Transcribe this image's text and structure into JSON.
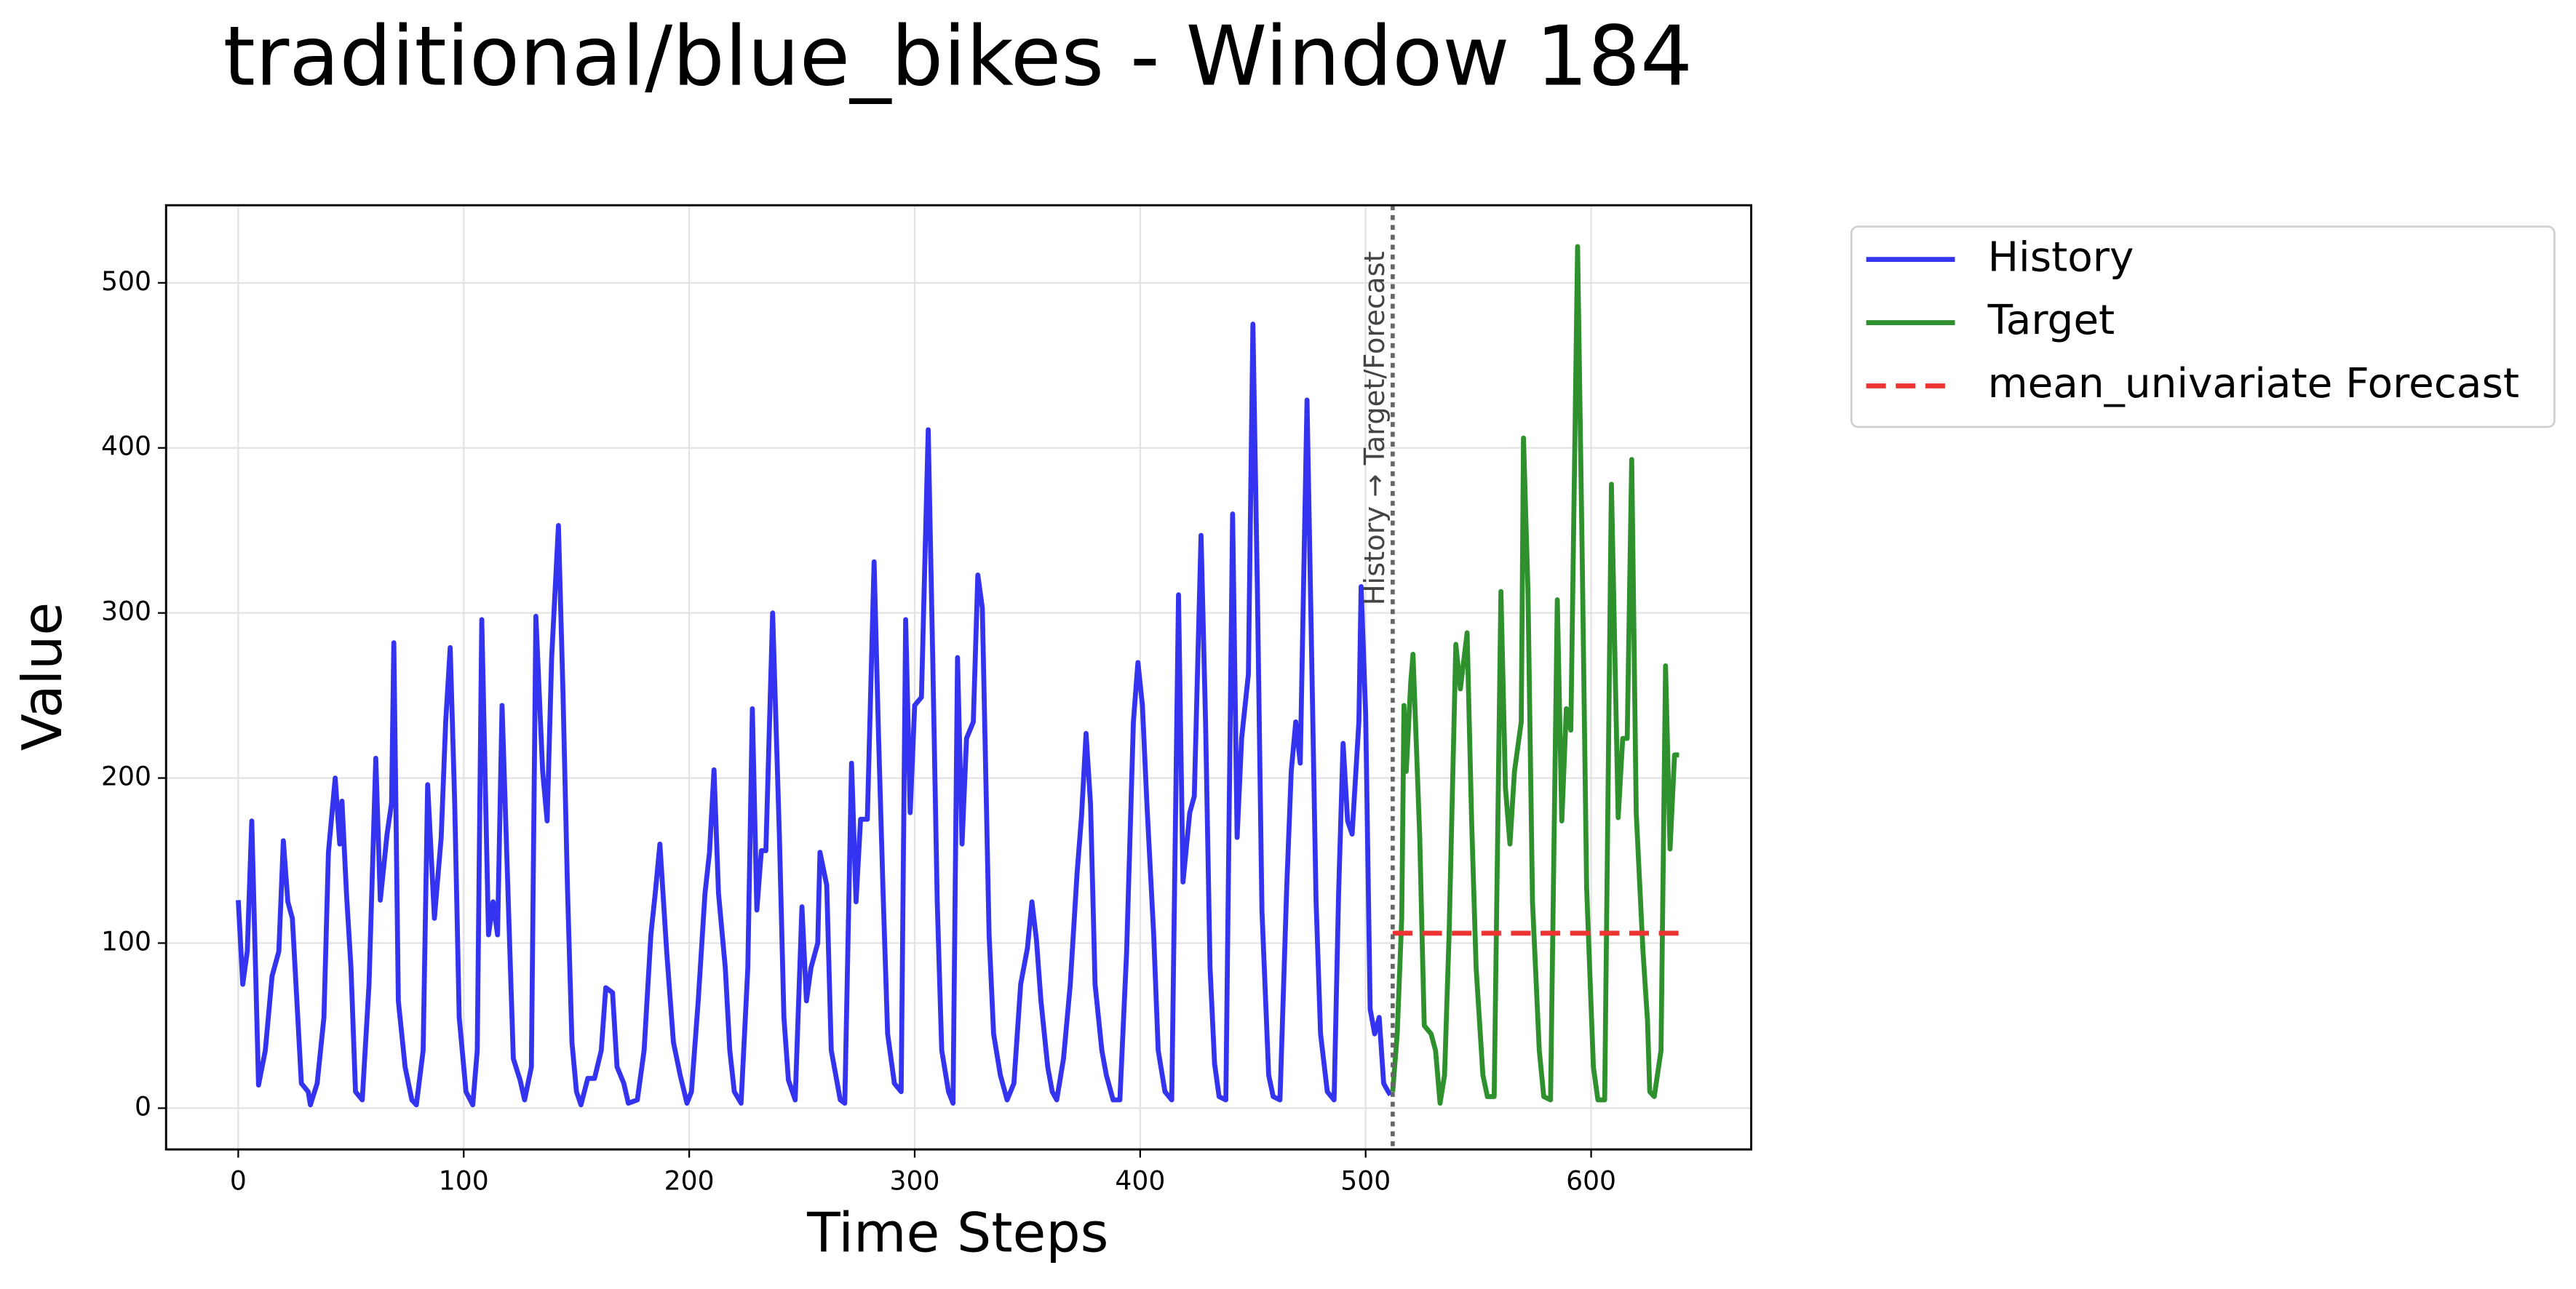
{
  "chart_data": {
    "type": "line",
    "title": "traditional/blue_bikes - Window 184",
    "x_label": "Time Steps",
    "y_label": "Value",
    "xlim": [
      -32,
      671
    ],
    "ylim": [
      -25,
      547
    ],
    "xticks": [
      0,
      100,
      200,
      300,
      400,
      500,
      600
    ],
    "yticks": [
      0,
      100,
      200,
      300,
      400,
      500
    ],
    "grid": true,
    "legend": "outside upper right",
    "split_x": 512,
    "split_label": "History → Target/Forecast",
    "series": [
      {
        "name": "History",
        "color": "#3333f0",
        "dash": false,
        "x": [
          0,
          2,
          4,
          6,
          9,
          12,
          15,
          18,
          20,
          22,
          24,
          26,
          28,
          31,
          32,
          35,
          38,
          40,
          43,
          45,
          46,
          48,
          50,
          52,
          55,
          58,
          61,
          63,
          66,
          68,
          69,
          71,
          74,
          77,
          79,
          82,
          84,
          87,
          90,
          92,
          94,
          96,
          98,
          101,
          104,
          106,
          108,
          111,
          113,
          115,
          117,
          120,
          122,
          125,
          127,
          130,
          132,
          135,
          137,
          139,
          142,
          144,
          146,
          148,
          150,
          152,
          155,
          158,
          161,
          163,
          166,
          168,
          171,
          173,
          177,
          180,
          183,
          185,
          187,
          190,
          193,
          196,
          199,
          201,
          204,
          207,
          209,
          211,
          213,
          216,
          218,
          220,
          223,
          226,
          228,
          230,
          232,
          234,
          237,
          240,
          242,
          244,
          247,
          250,
          252,
          254,
          257,
          258,
          261,
          263,
          265,
          267,
          269,
          272,
          274,
          276,
          279,
          282,
          284,
          286,
          288,
          291,
          294,
          296,
          298,
          300,
          303,
          306,
          308,
          310,
          312,
          315,
          317,
          319,
          321,
          323,
          326,
          328,
          330,
          333,
          335,
          338,
          341,
          344,
          347,
          350,
          352,
          354,
          356,
          359,
          361,
          363,
          366,
          369,
          372,
          374,
          376,
          378,
          380,
          383,
          385,
          388,
          391,
          394,
          397,
          399,
          401,
          403,
          406,
          408,
          411,
          414,
          417,
          419,
          422,
          424,
          427,
          429,
          431,
          433,
          435,
          438,
          441,
          443,
          445,
          448,
          450,
          452,
          454,
          457,
          459,
          462,
          465,
          467,
          469,
          471,
          474,
          476,
          478,
          480,
          483,
          486,
          488,
          490,
          492,
          494,
          497,
          498,
          500,
          502,
          504,
          506,
          508,
          510,
          511
        ],
        "values": [
          126,
          75,
          95,
          174,
          14,
          35,
          80,
          95,
          162,
          125,
          115,
          65,
          15,
          10,
          2,
          15,
          55,
          155,
          200,
          160,
          186,
          130,
          85,
          10,
          5,
          75,
          212,
          126,
          166,
          185,
          282,
          65,
          25,
          5,
          2,
          35,
          196,
          115,
          164,
          234,
          279,
          185,
          55,
          10,
          2,
          35,
          296,
          105,
          125,
          105,
          244,
          115,
          30,
          17,
          5,
          25,
          298,
          204,
          174,
          273,
          353,
          253,
          134,
          40,
          10,
          2,
          18,
          18,
          35,
          73,
          70,
          25,
          15,
          3,
          5,
          35,
          105,
          131,
          160,
          95,
          40,
          20,
          3,
          10,
          65,
          130,
          155,
          205,
          130,
          85,
          35,
          10,
          3,
          85,
          242,
          120,
          156,
          156,
          300,
          165,
          55,
          17,
          5,
          122,
          65,
          85,
          100,
          155,
          135,
          35,
          20,
          5,
          3,
          209,
          125,
          175,
          175,
          331,
          224,
          130,
          45,
          15,
          10,
          296,
          179,
          244,
          249,
          411,
          273,
          125,
          35,
          10,
          3,
          273,
          160,
          224,
          234,
          323,
          303,
          105,
          45,
          20,
          5,
          15,
          75,
          97,
          125,
          102,
          65,
          25,
          10,
          5,
          30,
          75,
          142,
          177,
          227,
          184,
          75,
          35,
          20,
          5,
          5,
          95,
          234,
          270,
          244,
          184,
          105,
          35,
          10,
          5,
          311,
          137,
          179,
          189,
          347,
          234,
          85,
          27,
          7,
          5,
          360,
          164,
          224,
          263,
          475,
          313,
          120,
          20,
          7,
          5,
          134,
          204,
          234,
          209,
          429,
          278,
          126,
          45,
          10,
          5,
          130,
          221,
          174,
          166,
          234,
          316,
          239,
          60,
          45,
          55,
          15,
          10,
          8
        ]
      },
      {
        "name": "Target",
        "color": "#2e912e",
        "dash": false,
        "x": [
          512,
          514,
          516,
          517,
          518,
          520,
          521,
          524,
          525,
          526,
          529,
          531,
          533,
          535,
          537,
          540,
          542,
          545,
          547,
          549,
          552,
          554,
          557,
          560,
          562,
          564,
          566,
          569,
          570,
          572,
          574,
          577,
          579,
          582,
          585,
          587,
          589,
          591,
          594,
          596,
          598,
          601,
          603,
          606,
          609,
          612,
          614,
          616,
          618,
          620,
          623,
          625,
          626,
          628,
          631,
          633,
          635,
          637,
          639
        ],
        "values": [
          10,
          45,
          115,
          244,
          204,
          258,
          275,
          164,
          105,
          50,
          45,
          35,
          3,
          20,
          105,
          281,
          254,
          288,
          174,
          85,
          20,
          7,
          7,
          313,
          194,
          160,
          204,
          234,
          406,
          313,
          125,
          35,
          7,
          5,
          308,
          174,
          242,
          229,
          522,
          338,
          134,
          25,
          5,
          5,
          378,
          176,
          224,
          224,
          393,
          179,
          95,
          53,
          10,
          7,
          35,
          268,
          157,
          214,
          214
        ]
      },
      {
        "name": "mean_univariate Forecast",
        "color": "#ee3333",
        "dash": true,
        "x": [
          512,
          639
        ],
        "values": [
          106,
          106
        ]
      }
    ]
  }
}
